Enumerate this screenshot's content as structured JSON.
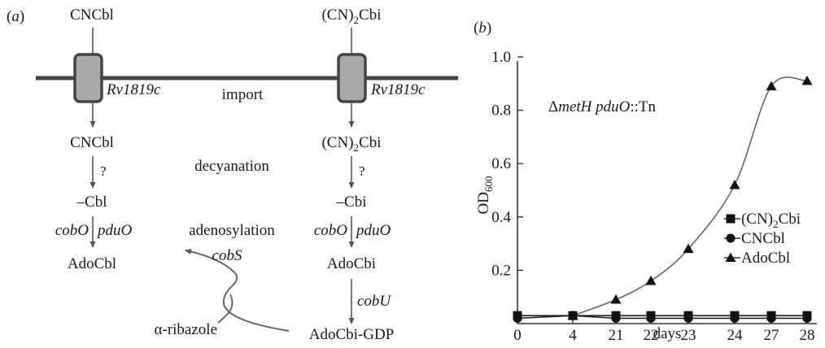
{
  "panel_a": {
    "label_open": "(",
    "label_letter": "a",
    "label_close": ")",
    "left_column": {
      "top": "CNCbl",
      "transporter": "Rv1819c",
      "mid": "CNCbl",
      "question": "?",
      "reduced": "–Cbl",
      "enzyme_left": "cobO",
      "enzyme_right": "pduO",
      "product": "AdoCbl"
    },
    "right_column": {
      "top_pre": "(CN)",
      "top_sub": "2",
      "top_post": "Cbi",
      "transporter": "Rv1819c",
      "mid_pre": "(CN)",
      "mid_sub": "2",
      "mid_post": "Cbi",
      "question": "?",
      "reduced": "–Cbi",
      "enzyme_left": "cobO",
      "enzyme_right": "pduO",
      "product": "AdoCbi",
      "enzyme_next": "cobU",
      "final": "AdoCbi-GDP"
    },
    "center_labels": {
      "import": "import",
      "decyanation": "decyanation",
      "adenosylation": "adenosylation"
    },
    "salvage": {
      "enzyme": "cobS",
      "substrate": "α-ribazole"
    }
  },
  "panel_b": {
    "label_open": "(",
    "label_letter": "b",
    "label_close": ")"
  },
  "chart_data": {
    "type": "line",
    "annotation_delta": "Δ",
    "annotation_gene1": "metH pduO",
    "annotation_suffix": "::Tn",
    "ylabel_main": "OD",
    "ylabel_sub": "600",
    "xlabel": "days",
    "categories": [
      "0",
      "4",
      "21",
      "22",
      "23",
      "24",
      "27",
      "28"
    ],
    "x": [
      0,
      4,
      21,
      22,
      23,
      24,
      27,
      28
    ],
    "ylim": [
      0,
      1.0
    ],
    "yticks": [
      "0.2",
      "0.4",
      "0.6",
      "0.8",
      "1.0"
    ],
    "ytick_values": [
      0.2,
      0.4,
      0.6,
      0.8,
      1.0
    ],
    "legend_placement": "middle-right",
    "series": [
      {
        "name_pre": "(CN)",
        "name_sub": "2",
        "name_post": "Cbi",
        "marker": "square",
        "x": [
          0,
          4,
          21,
          22,
          23,
          24,
          27,
          28
        ],
        "values": [
          0.03,
          0.03,
          0.03,
          0.03,
          0.03,
          0.03,
          0.03,
          0.03
        ]
      },
      {
        "name": "CNCbl",
        "marker": "circle",
        "x": [
          0,
          4,
          21,
          22,
          23,
          24,
          27,
          28
        ],
        "values": [
          0.02,
          0.03,
          0.02,
          0.02,
          0.02,
          0.02,
          0.02,
          0.02
        ]
      },
      {
        "name": "AdoCbl",
        "marker": "triangle",
        "x": [
          4,
          21,
          22,
          23,
          24,
          27,
          28
        ],
        "values": [
          0.03,
          0.09,
          0.16,
          0.28,
          0.52,
          0.89,
          0.91
        ]
      }
    ]
  }
}
